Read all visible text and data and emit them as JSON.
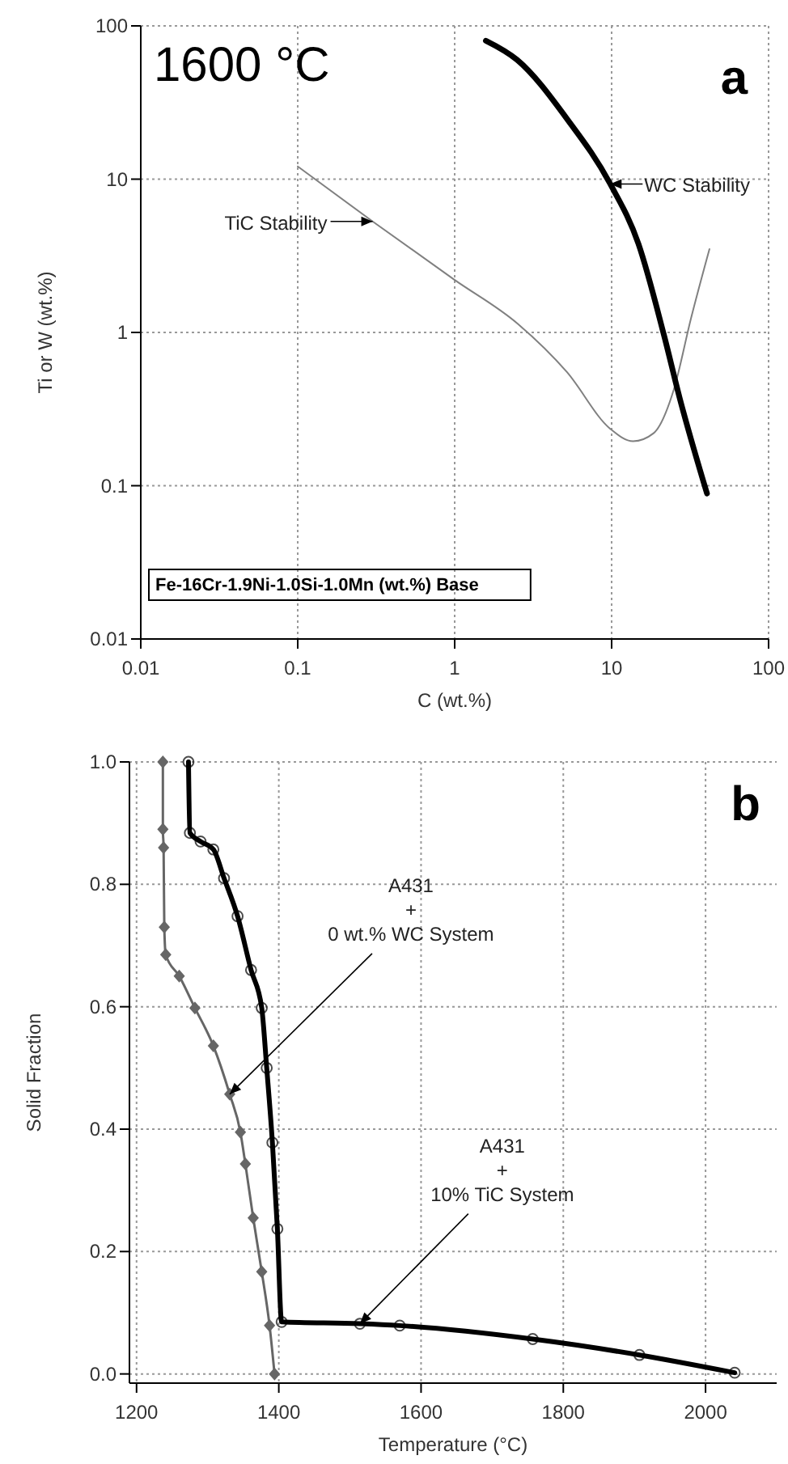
{
  "chart_data": [
    {
      "type": "line",
      "xlabel": "C (wt.%)",
      "ylabel": "Ti or W (wt.%)",
      "log": "xy",
      "grid": true,
      "xlim": [
        0.01,
        100
      ],
      "ylim": [
        0.01,
        100
      ],
      "xticks": [
        0.01,
        0.1,
        1,
        10,
        100
      ],
      "yticks": [
        0.01,
        0.1,
        1,
        10,
        100
      ],
      "annotations": [
        "1600 °C",
        "a",
        "Fe-16Cr-1.9Ni-1.0Si-1.0Mn (wt.%) Base"
      ],
      "series": [
        {
          "name": "TiC Stability",
          "color": "#808080",
          "x": [
            0.1,
            0.3,
            1.0,
            2.52,
            5.2,
            9.8,
            13.7,
            18.5,
            25,
            32,
            42
          ],
          "values": [
            12.1,
            5.3,
            2.2,
            1.14,
            0.55,
            0.235,
            0.195,
            0.22,
            0.43,
            1.23,
            3.5
          ]
        },
        {
          "name": "WC Stability",
          "color": "#000000",
          "x": [
            1.58,
            2.5,
            5.2,
            9.8,
            14.8,
            21.5,
            27.2,
            40.5
          ],
          "values": [
            80,
            60,
            24.7,
            9.3,
            3.8,
            0.97,
            0.37,
            0.089
          ]
        }
      ]
    },
    {
      "type": "line",
      "xlabel": "Temperature (°C)",
      "ylabel": "Solid Fraction",
      "grid": true,
      "xlim": [
        1190,
        2100
      ],
      "ylim": [
        -0.015,
        1.0
      ],
      "xticks": [
        1200,
        1400,
        1600,
        1800,
        2000
      ],
      "yticks": [
        {
          "value": 0,
          "label": "0.0"
        },
        {
          "value": 0.2,
          "label": "0.2"
        },
        {
          "value": 0.4,
          "label": "0.4"
        },
        {
          "value": 0.6,
          "label": "0.6"
        },
        {
          "value": 0.8,
          "label": "0.8"
        },
        {
          "value": 1,
          "label": "1.0"
        }
      ],
      "annotations": [
        "b"
      ],
      "series": [
        {
          "name": "A431\n+\n0 wt.% WC System",
          "color": "#666666",
          "marker": "diamond",
          "x": [
            1237,
            1237,
            1238,
            1239,
            1241,
            1260,
            1282,
            1308,
            1331,
            1346,
            1353,
            1364,
            1376,
            1387,
            1394
          ],
          "values": [
            1.0,
            0.89,
            0.86,
            0.73,
            0.685,
            0.65,
            0.598,
            0.536,
            0.457,
            0.395,
            0.343,
            0.255,
            0.167,
            0.079,
            0
          ]
        },
        {
          "name": "A431\n+\n10% TiC System",
          "color": "#000000",
          "marker": "circle",
          "x": [
            1273,
            1275,
            1290,
            1308,
            1323,
            1342,
            1361,
            1376,
            1383,
            1391,
            1398,
            1404,
            1514,
            1570,
            1757,
            1907,
            2041
          ],
          "values": [
            1.0,
            0.884,
            0.87,
            0.857,
            0.81,
            0.748,
            0.66,
            0.598,
            0.5,
            0.378,
            0.237,
            0.085,
            0.082,
            0.079,
            0.057,
            0.031,
            0.002
          ]
        }
      ]
    }
  ]
}
